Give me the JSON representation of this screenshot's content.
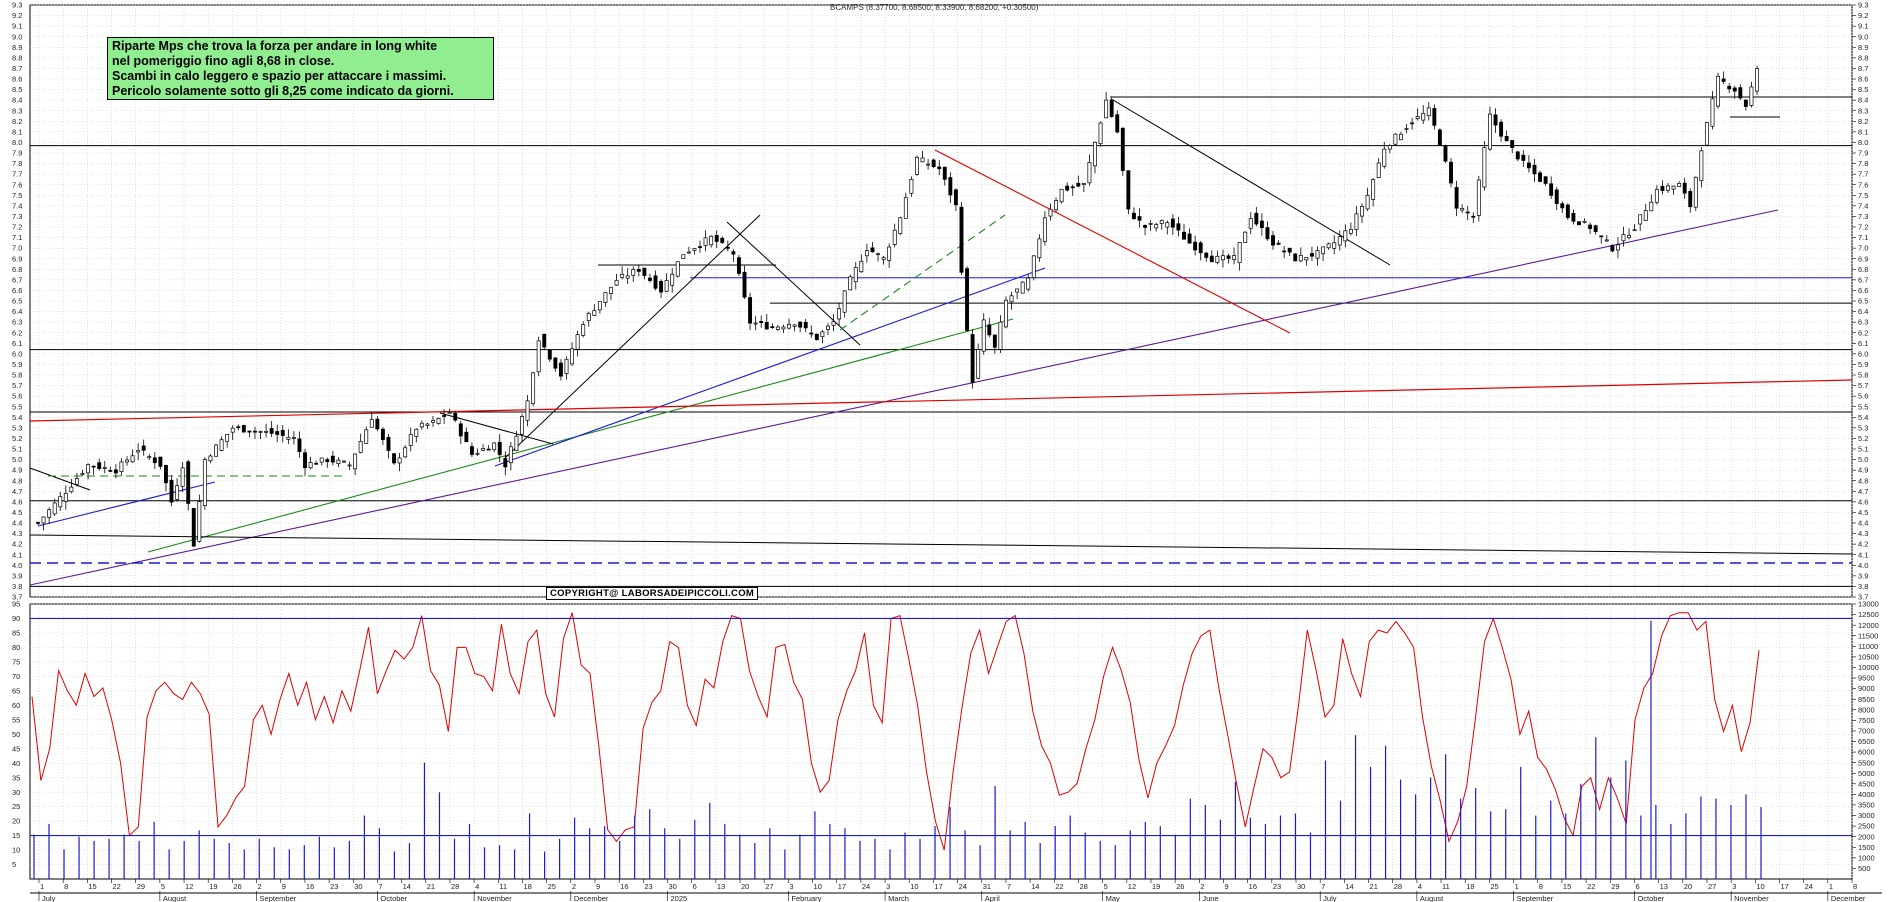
{
  "title": "BCAMPS (8.37700, 8.68500, 8.33900, 8.68200, +0.30500)",
  "note_lines": [
    "Riparte Mps che trova la forza per andare in long white",
    "nel pomeriggio fino agli 8,68 in close.",
    "Scambi in calo leggero e spazio per attaccare i massimi.",
    "Pericolo solamente sotto gli 8,25 come indicato da giorni."
  ],
  "copyright": "COPYRIGHT@ LABORSADEIPICCOLI.COM",
  "colors": {
    "background": "#ffffff",
    "grid": "#c8c8c8",
    "candle": "#000000",
    "oscillator": "#e00000",
    "volume": "#1a1ad6",
    "note_bg": "#90ee90"
  },
  "chart_data": [
    {
      "type": "candlestick",
      "title": "BCAMPS (8.37700, 8.68500, 8.33900, 8.68200, +0.30500)",
      "ylim": [
        3.7,
        9.3
      ],
      "yticks": [
        "3.7",
        "3.8",
        "3.9",
        "4.0",
        "4.1",
        "4.2",
        "4.3",
        "4.4",
        "4.5",
        "4.6",
        "4.7",
        "4.8",
        "4.9",
        "5.0",
        "5.1",
        "5.2",
        "5.3",
        "5.4",
        "5.5",
        "5.6",
        "5.7",
        "5.8",
        "5.9",
        "6.0",
        "6.1",
        "6.2",
        "6.3",
        "6.4",
        "6.5",
        "6.6",
        "6.7",
        "6.8",
        "6.9",
        "7.0",
        "7.1",
        "7.2",
        "7.3",
        "7.4",
        "7.5",
        "7.6",
        "7.7",
        "7.8",
        "7.9",
        "8.0",
        "8.1",
        "8.2",
        "8.3",
        "8.4",
        "8.5",
        "8.6",
        "8.7",
        "8.8",
        "8.9",
        "9.0",
        "9.1",
        "9.2",
        "9.3"
      ],
      "last": {
        "open": 8.377,
        "high": 8.685,
        "low": 8.339,
        "close": 8.682,
        "change": 0.305
      },
      "close_path": [
        {
          "i": 0,
          "v": 4.4
        },
        {
          "i": 5,
          "v": 4.7
        },
        {
          "i": 9,
          "v": 4.95
        },
        {
          "i": 14,
          "v": 4.9
        },
        {
          "i": 18,
          "v": 5.1
        },
        {
          "i": 22,
          "v": 4.95
        },
        {
          "i": 24,
          "v": 4.6
        },
        {
          "i": 26,
          "v": 4.95
        },
        {
          "i": 28,
          "v": 4.2
        },
        {
          "i": 30,
          "v": 5.0
        },
        {
          "i": 35,
          "v": 5.3
        },
        {
          "i": 42,
          "v": 5.25
        },
        {
          "i": 46,
          "v": 5.2
        },
        {
          "i": 48,
          "v": 4.95
        },
        {
          "i": 52,
          "v": 5.0
        },
        {
          "i": 56,
          "v": 4.95
        },
        {
          "i": 60,
          "v": 5.4
        },
        {
          "i": 64,
          "v": 4.95
        },
        {
          "i": 68,
          "v": 5.3
        },
        {
          "i": 71,
          "v": 5.35
        },
        {
          "i": 74,
          "v": 5.45
        },
        {
          "i": 78,
          "v": 5.05
        },
        {
          "i": 82,
          "v": 5.15
        },
        {
          "i": 84,
          "v": 4.95
        },
        {
          "i": 88,
          "v": 5.55
        },
        {
          "i": 90,
          "v": 6.15
        },
        {
          "i": 94,
          "v": 5.8
        },
        {
          "i": 98,
          "v": 6.3
        },
        {
          "i": 104,
          "v": 6.7
        },
        {
          "i": 108,
          "v": 6.8
        },
        {
          "i": 112,
          "v": 6.6
        },
        {
          "i": 116,
          "v": 6.95
        },
        {
          "i": 121,
          "v": 7.1
        },
        {
          "i": 125,
          "v": 6.95
        },
        {
          "i": 128,
          "v": 6.3
        },
        {
          "i": 132,
          "v": 6.25
        },
        {
          "i": 136,
          "v": 6.3
        },
        {
          "i": 140,
          "v": 6.15
        },
        {
          "i": 143,
          "v": 6.3
        },
        {
          "i": 146,
          "v": 6.7
        },
        {
          "i": 149,
          "v": 7.0
        },
        {
          "i": 152,
          "v": 6.9
        },
        {
          "i": 155,
          "v": 7.3
        },
        {
          "i": 158,
          "v": 7.85
        },
        {
          "i": 162,
          "v": 7.75
        },
        {
          "i": 165,
          "v": 7.4
        },
        {
          "i": 167,
          "v": 6.2
        },
        {
          "i": 168,
          "v": 5.75
        },
        {
          "i": 170,
          "v": 6.3
        },
        {
          "i": 172,
          "v": 6.05
        },
        {
          "i": 174,
          "v": 6.5
        },
        {
          "i": 178,
          "v": 6.7
        },
        {
          "i": 181,
          "v": 7.3
        },
        {
          "i": 184,
          "v": 7.55
        },
        {
          "i": 188,
          "v": 7.6
        },
        {
          "i": 190,
          "v": 8.0
        },
        {
          "i": 192,
          "v": 8.4
        },
        {
          "i": 194,
          "v": 8.1
        },
        {
          "i": 196,
          "v": 7.35
        },
        {
          "i": 199,
          "v": 7.2
        },
        {
          "i": 203,
          "v": 7.25
        },
        {
          "i": 207,
          "v": 7.05
        },
        {
          "i": 211,
          "v": 6.9
        },
        {
          "i": 215,
          "v": 6.9
        },
        {
          "i": 218,
          "v": 7.3
        },
        {
          "i": 222,
          "v": 7.05
        },
        {
          "i": 226,
          "v": 6.9
        },
        {
          "i": 230,
          "v": 6.95
        },
        {
          "i": 233,
          "v": 7.05
        },
        {
          "i": 236,
          "v": 7.2
        },
        {
          "i": 239,
          "v": 7.5
        },
        {
          "i": 242,
          "v": 7.95
        },
        {
          "i": 247,
          "v": 8.2
        },
        {
          "i": 250,
          "v": 8.3
        },
        {
          "i": 252,
          "v": 8.0
        },
        {
          "i": 255,
          "v": 7.4
        },
        {
          "i": 258,
          "v": 7.3
        },
        {
          "i": 261,
          "v": 8.25
        },
        {
          "i": 264,
          "v": 8.0
        },
        {
          "i": 267,
          "v": 7.8
        },
        {
          "i": 271,
          "v": 7.6
        },
        {
          "i": 275,
          "v": 7.3
        },
        {
          "i": 279,
          "v": 7.2
        },
        {
          "i": 283,
          "v": 7.0
        },
        {
          "i": 287,
          "v": 7.2
        },
        {
          "i": 291,
          "v": 7.55
        },
        {
          "i": 295,
          "v": 7.6
        },
        {
          "i": 297,
          "v": 7.4
        },
        {
          "i": 299,
          "v": 7.95
        },
        {
          "i": 302,
          "v": 8.6
        },
        {
          "i": 305,
          "v": 8.5
        },
        {
          "i": 307,
          "v": 8.35
        },
        {
          "i": 309,
          "v": 8.68
        }
      ],
      "levels": [
        8.43,
        7.97,
        6.72,
        6.48,
        6.04,
        5.45,
        4.61,
        3.8
      ],
      "x_month_labels": [
        "July",
        "August",
        "September",
        "October",
        "November",
        "December",
        "2025",
        "February",
        "March",
        "April",
        "May",
        "June",
        "July",
        "August",
        "September",
        "October",
        "November",
        "December"
      ],
      "x_day_labels": [
        "1",
        "8",
        "15",
        "22",
        "29",
        "5",
        "12",
        "19",
        "26",
        "2",
        "9",
        "16",
        "23",
        "30",
        "7",
        "14",
        "21",
        "28",
        "4",
        "11",
        "18",
        "25",
        "2",
        "9",
        "16",
        "23",
        "30",
        "6",
        "13",
        "20",
        "27",
        "3",
        "10",
        "17",
        "24",
        "3",
        "10",
        "17",
        "24",
        "31",
        "7",
        "14",
        "22",
        "28",
        "5",
        "12",
        "19",
        "26",
        "2",
        "9",
        "16",
        "23",
        "30",
        "7",
        "14",
        "21",
        "28",
        "4",
        "11",
        "18",
        "25",
        "1",
        "8",
        "15",
        "22",
        "29",
        "6",
        "13",
        "20",
        "27",
        "3",
        "10",
        "17",
        "24",
        "1",
        "8"
      ]
    },
    {
      "type": "line",
      "series": [
        {
          "name": "",
          "values": [
            63,
            34,
            45,
            72,
            65,
            60,
            71,
            63,
            66,
            55,
            40,
            15,
            18,
            56,
            65,
            68,
            64,
            62,
            68,
            64,
            57,
            18,
            22,
            28,
            32,
            55,
            60,
            50,
            62,
            71,
            60,
            68,
            55,
            63,
            54,
            65,
            58,
            72,
            87,
            64,
            72,
            79,
            76,
            80,
            91,
            72,
            67,
            51,
            80,
            80,
            71,
            70,
            65,
            88,
            71,
            64,
            82,
            86,
            64,
            56,
            83,
            92,
            74,
            71,
            46,
            17,
            13,
            17,
            18,
            52,
            61,
            65,
            82,
            80,
            60,
            53,
            69,
            66,
            82,
            91,
            90,
            72,
            63,
            56,
            80,
            81,
            68,
            62,
            40,
            30,
            34,
            55,
            65,
            72,
            85,
            60,
            54,
            90,
            91,
            76,
            60,
            37,
            20,
            10,
            37,
            59,
            78,
            86,
            71,
            80,
            89,
            91,
            78,
            58,
            46,
            40,
            29,
            30,
            33,
            45,
            55,
            70,
            80,
            72,
            61,
            41,
            28,
            40,
            46,
            53,
            67,
            78,
            84,
            86,
            66,
            50,
            33,
            18,
            32,
            45,
            42,
            35,
            37,
            60,
            86,
            72,
            56,
            60,
            83,
            71,
            63,
            82,
            86,
            85,
            89,
            85,
            80,
            56,
            39,
            27,
            13,
            20,
            32,
            56,
            82,
            90,
            80,
            69,
            50,
            58,
            42,
            38,
            31,
            21,
            15,
            32,
            35,
            24,
            35,
            28,
            19,
            55,
            66,
            71,
            84,
            91,
            92,
            92,
            86,
            89,
            62,
            51,
            60,
            44,
            54,
            79
          ]
        }
      ],
      "ylim": [
        0,
        95
      ],
      "yticks": [
        "5",
        "10",
        "15",
        "20",
        "25",
        "30",
        "35",
        "40",
        "45",
        "50",
        "55",
        "60",
        "65",
        "70",
        "75",
        "80",
        "85",
        "90",
        "95"
      ],
      "reference_lines": [
        90,
        15
      ]
    },
    {
      "type": "bar",
      "series": [
        {
          "name": "",
          "values": [
            2100,
            2600,
            1400,
            2000,
            1800,
            1900,
            2100,
            1800,
            2700,
            1400,
            1800,
            2300,
            1900,
            1700,
            1400,
            1900,
            1500,
            1400,
            1600,
            2000,
            1500,
            1800,
            3000,
            2400,
            1300,
            1700,
            5500,
            4100,
            1900,
            2600,
            1500,
            1600,
            1400,
            3100,
            1300,
            1900,
            2900,
            2400,
            2500,
            1800,
            3000,
            3300,
            2400,
            1900,
            2800,
            3600,
            2600,
            2100,
            1700,
            2400,
            1400,
            2100,
            3200,
            2600,
            2400,
            1800,
            1900,
            1400,
            2200,
            1900,
            2500,
            3400,
            2300,
            1600,
            4400,
            2300,
            2700,
            1700,
            2500,
            3000,
            2200,
            1800,
            1600,
            2300,
            2700,
            2500,
            2100,
            3800,
            3500,
            2800,
            4600,
            2900,
            2600,
            3000,
            3100,
            2200,
            5600,
            3700,
            6800,
            5300,
            6300,
            4700,
            4000,
            4800,
            5900,
            3800,
            4300,
            3200,
            3300,
            5300,
            3000,
            3700,
            3100,
            4500,
            6700,
            4800,
            5600,
            3000,
            3500,
            2600,
            3100,
            3900,
            3800,
            3500,
            4000,
            3400
          ]
        }
      ],
      "ylim": [
        0,
        13000
      ],
      "yticks": [
        "500",
        "1000",
        "1500",
        "2000",
        "2500",
        "3000",
        "3500",
        "4000",
        "4500",
        "5000",
        "5500",
        "6000",
        "6500",
        "7000",
        "7500",
        "8000",
        "8500",
        "9000",
        "9500",
        "10000",
        "10500",
        "11000",
        "11500",
        "12000",
        "12500",
        "13000"
      ],
      "reference_lines": [
        12000,
        2000
      ]
    }
  ]
}
